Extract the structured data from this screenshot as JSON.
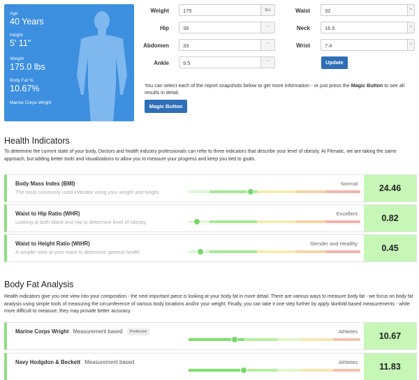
{
  "profile": {
    "age_label": "Age",
    "age_value": "40 Years",
    "height_label": "Height",
    "height_value": "5' 11\"",
    "weight_label": "Weight",
    "weight_value": "175.0 lbs",
    "bodyfat_label": "Body Fat %",
    "bodyfat_value": "10.67%",
    "method": "Marine Corps Wright"
  },
  "form": {
    "weight_label": "Weight",
    "weight_value": "175",
    "weight_unit": "lbs",
    "hip_label": "Hip",
    "hip_value": "39",
    "hip_unit": "\"",
    "abdomen_label": "Abdomen",
    "abdomen_value": "33",
    "abdomen_unit": "\"",
    "ankle_label": "Ankle",
    "ankle_value": "9.5",
    "ankle_unit": "\"",
    "waist_label": "Waist",
    "waist_value": "32",
    "neck_label": "Neck",
    "neck_value": "16.5",
    "wrist_label": "Wrist",
    "wrist_value": "7.4",
    "update_button": "Update",
    "hint_pre": "You can select each of the report snapshots below to get more information - or just press the ",
    "hint_bold": "Magic Button",
    "hint_post": " to see all results in detail.",
    "magic_button": "Magic Button"
  },
  "health": {
    "title": "Health Indicators",
    "description": "To determine the current state of your body, Doctors and health industry professionals can refer to three indicators that describe your level of obesity. At Fitmatic, we are taking the same approach, but adding better tools and visualizations to allow you to measure your progress and keep you tied to goals.",
    "rows": [
      {
        "name": "Body Mass Index (BMI)",
        "subtitle": "The most commonly used indicator using your weight and height.",
        "category": "Normal",
        "score": "24.46",
        "marker": 0.36
      },
      {
        "name": "Waist to Hip Ratio (WHR)",
        "subtitle": "Looking at both Waist and Hip to determine level of obesity.",
        "category": "Excellent",
        "score": "0.82",
        "marker": 0.05
      },
      {
        "name": "Waist to Height Ratio (WtHR)",
        "subtitle": "A simpler view at your waist to determine general health.",
        "category": "Slender and Healthy",
        "score": "0.45",
        "marker": 0.07
      }
    ]
  },
  "bodyfat": {
    "title": "Body Fat Analysis",
    "description": "Health indicators give you one view into your composition - the next important piece is looking at your body fat in more detail. There are various ways to measure body fat - we focus on body fat analysis using simple tools of measuring the circumference of various body locations and/or your weight. Finally, you can take it one step further by apply skinfold based measurements - while more difficult to measure, they may provide better accuracy.",
    "rows": [
      {
        "name": "Marine Corps Wright",
        "measurement": "Measurement based",
        "badge": "Preferred",
        "category": "Athletes",
        "score": "10.67",
        "marker": 0.27
      },
      {
        "name": "Navy Hodgdon & Beckett",
        "measurement": "Measurement based",
        "category": "Athletes",
        "score": "11.83",
        "marker": 0.32
      }
    ]
  },
  "colors": {
    "profile_bg": "#3d8fdf",
    "accent_green": "#8fe07f",
    "score_bg": "#c6f7b7",
    "button_blue": "#2e6fb7"
  }
}
